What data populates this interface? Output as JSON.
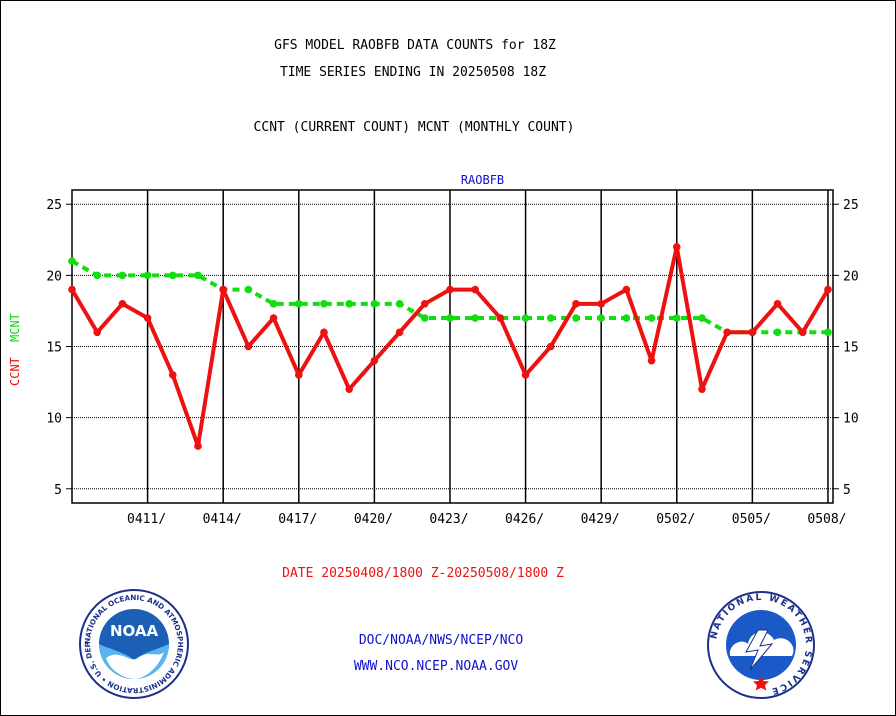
{
  "header": {
    "title_line1": "GFS MODEL RAOBFB DATA COUNTS for 18Z",
    "title_line2": "TIME SERIES ENDING IN 20250508 18Z",
    "subtitle": "CCNT (CURRENT COUNT) MCNT (MONTHLY COUNT)"
  },
  "footer": {
    "date_range": "DATE 20250408/1800 Z-20250508/1800 Z",
    "org_path": "DOC/NOAA/NWS/NCEP/NCO",
    "website": "WWW.NCO.NCEP.NOAA.GOV"
  },
  "logos": {
    "noaa_center_text": "NOAA",
    "noaa_ring_text": "NATIONAL OCEANIC AND ATMOSPHERIC ADMINISTRATION • U.S. DEPARTMENT OF COMMERCE",
    "nws_ring_text": "NATIONAL WEATHER SERVICE"
  },
  "colors": {
    "ccnt": "#ee1111",
    "mcnt": "#11dd11",
    "plot_title": "#1111cc",
    "footer_blue": "#1111cc",
    "date_red": "#ee1111"
  },
  "chart_data": {
    "type": "line",
    "title": "RAOBFB",
    "ylabel_left_ccnt": "CCNT",
    "ylabel_left_mcnt": "MCNT",
    "ylim": [
      4,
      26
    ],
    "yticks": [
      5,
      10,
      15,
      20,
      25
    ],
    "x_tick_labels": [
      "0411/",
      "0414/",
      "0417/",
      "0420/",
      "0423/",
      "0426/",
      "0429/",
      "0502/",
      "0505/",
      "0508/"
    ],
    "x_tick_days": [
      3,
      6,
      9,
      12,
      15,
      18,
      21,
      24,
      27,
      30
    ],
    "grid": true,
    "series": [
      {
        "name": "CCNT",
        "style": "solid",
        "x": [
          0,
          1,
          2,
          3,
          4,
          5,
          6,
          7,
          8,
          9,
          10,
          11,
          12,
          13,
          14,
          15,
          16,
          17,
          18,
          19,
          20,
          21,
          22,
          23,
          24,
          25,
          26,
          27,
          28,
          29,
          30
        ],
        "values": [
          19,
          16,
          18,
          17,
          13,
          8,
          19,
          15,
          17,
          13,
          16,
          12,
          14,
          16,
          18,
          19,
          19,
          17,
          13,
          15,
          18,
          18,
          19,
          14,
          22,
          12,
          16,
          16,
          18,
          16,
          19
        ]
      },
      {
        "name": "MCNT",
        "style": "dashed",
        "x": [
          0,
          1,
          2,
          3,
          4,
          5,
          6,
          7,
          8,
          9,
          10,
          11,
          12,
          13,
          14,
          15,
          16,
          17,
          18,
          19,
          20,
          21,
          22,
          23,
          24,
          25,
          26,
          27,
          28,
          29,
          30
        ],
        "values": [
          21,
          20,
          20,
          20,
          20,
          20,
          19,
          19,
          18,
          18,
          18,
          18,
          18,
          18,
          17,
          17,
          17,
          17,
          17,
          17,
          17,
          17,
          17,
          17,
          17,
          17,
          16,
          16,
          16,
          16,
          16
        ]
      }
    ]
  }
}
